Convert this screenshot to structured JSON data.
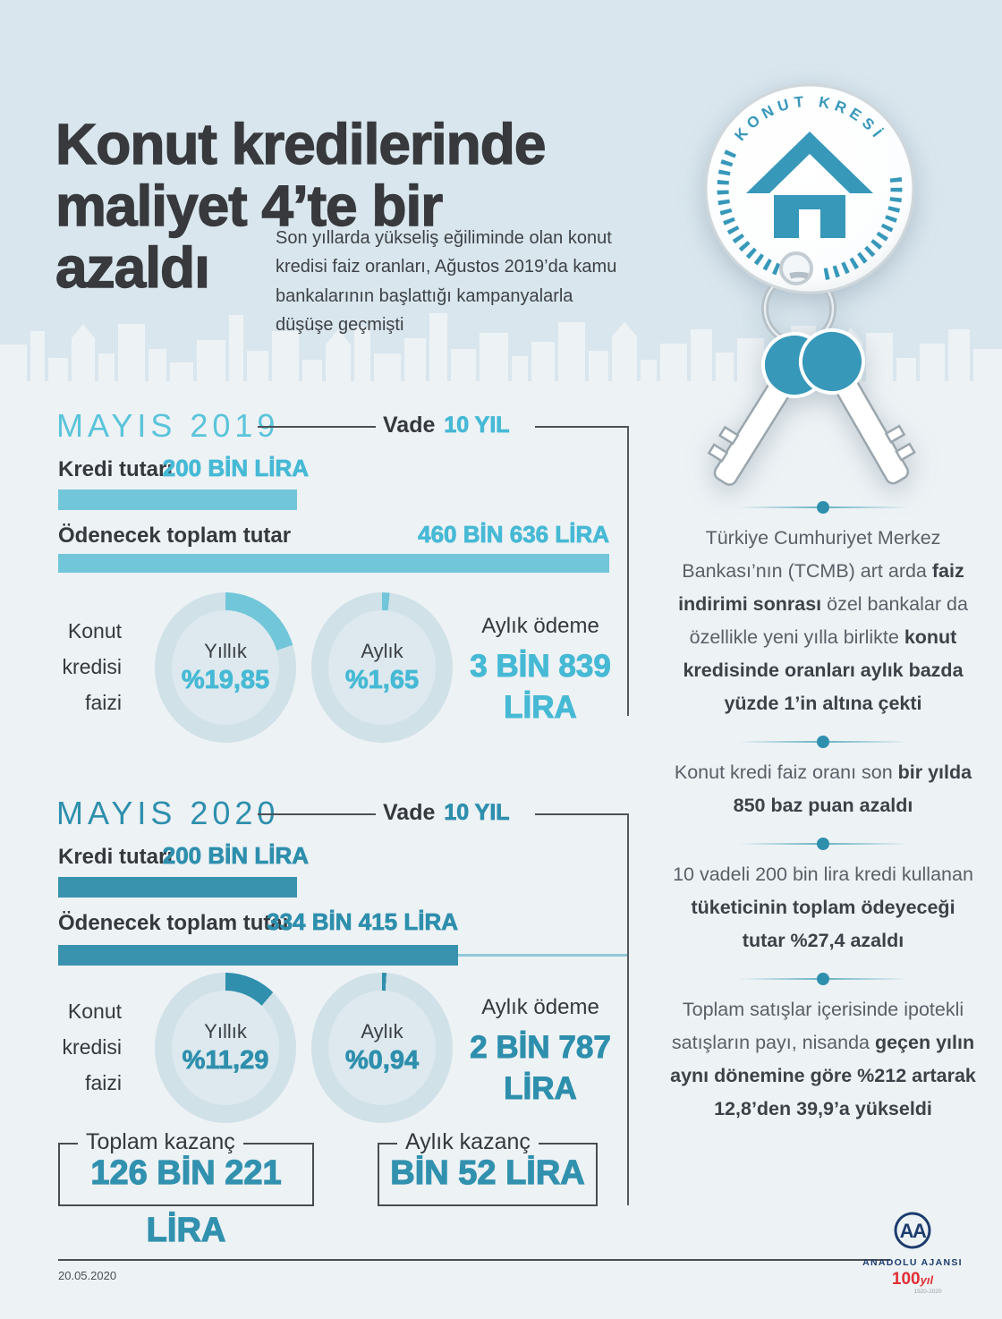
{
  "header": {
    "title_lines": [
      "Konut kredilerinde",
      "maliyet 4’te bir",
      "azaldı"
    ],
    "subtitle": "Son yıllarda yükseliş eğiliminde olan konut kredisi faiz oranları, Ağustos 2019’da kamu bankalarının başlattığı kampanyalarla düşüşe geçmişti",
    "badge": {
      "curved_text": "KONUT KRESİ"
    }
  },
  "may2019": {
    "heading": "MAYIS 2019",
    "vade_label": "Vade",
    "vade_value": "10 YIL",
    "kredi_label": "Kredi tutarı",
    "kredi_value": "200 BİN LİRA",
    "toplam_label": "Ödenecek toplam tutar",
    "toplam_value": "460 BİN 636 LİRA",
    "faiz_label": "Konut kredisi faizi",
    "yillik_label": "Yıllık",
    "yillik_value": "%19,85",
    "aylik_label": "Aylık",
    "aylik_value": "%1,65",
    "odeme_label": "Aylık ödeme",
    "odeme_line1": "3 BİN 839",
    "odeme_line2": "LİRA"
  },
  "may2020": {
    "heading": "MAYIS 2020",
    "vade_label": "Vade",
    "vade_value": "10 YIL",
    "kredi_label": "Kredi tutarı",
    "kredi_value": "200 BİN LİRA",
    "toplam_label": "Ödenecek toplam tutar",
    "toplam_value": "334 BİN 415 LİRA",
    "faiz_label": "Konut kredisi faizi",
    "yillik_label": "Yıllık",
    "yillik_value": "%11,29",
    "aylik_label": "Aylık",
    "aylik_value": "%0,94",
    "odeme_label": "Aylık ödeme",
    "odeme_line1": "2 BİN 787",
    "odeme_line2": "LİRA"
  },
  "kazanc": {
    "toplam_label": "Toplam kazanç",
    "toplam_value": "126 BİN 221 LİRA",
    "aylik_label": "Aylık kazanç",
    "aylik_value": "BİN 52 LİRA"
  },
  "right_column": {
    "paragraphs": [
      {
        "segments": [
          {
            "text": "Türkiye Cumhuriyet Merkez Bankası’nın (TCMB) art arda ",
            "bold": false
          },
          {
            "text": "faiz indirimi sonrası",
            "bold": true
          },
          {
            "text": " özel bankalar da özellikle yeni yılla birlikte ",
            "bold": false
          },
          {
            "text": "konut kredisinde oranları aylık bazda yüzde 1’in altına çekti",
            "bold": true
          }
        ]
      },
      {
        "segments": [
          {
            "text": "Konut kredi faiz oranı son ",
            "bold": false
          },
          {
            "text": "bir yılda 850 baz puan azaldı",
            "bold": true
          }
        ]
      },
      {
        "segments": [
          {
            "text": "10 vadeli 200 bin lira kredi kullanan ",
            "bold": false
          },
          {
            "text": "tüketicinin toplam ödeyeceği tutar %27,4 azaldı",
            "bold": true
          }
        ]
      },
      {
        "segments": [
          {
            "text": "Toplam satışlar içerisinde ipotekli satışların payı, nisanda ",
            "bold": false
          },
          {
            "text": "geçen yılın aynı dönemine göre %212 artarak 12,8’den 39,9’a yükseldi",
            "bold": true
          }
        ]
      }
    ]
  },
  "footer": {
    "date": "20.05.2020",
    "logo_monogram": "AA",
    "agency": "ANADOLU AJANSI",
    "anniversary_number": "100",
    "anniversary_suffix": "yıl",
    "anniversary_years": "1920-2020"
  },
  "colors": {
    "accent_2019": "#46b9d5",
    "accent_2020": "#2e8fad",
    "bar_2019": "#72c6d9",
    "bar_2020": "#3a93ae",
    "header_bg": "#d9e6ee",
    "page_bg": "#edf2f5",
    "dark_text": "#35383c"
  },
  "chart_data": [
    {
      "type": "pie",
      "subtype": "donut",
      "group": "Mayıs 2019 konut kredisi faizi",
      "unit": "%",
      "series": [
        {
          "name": "Yıllık",
          "value": 19.85
        },
        {
          "name": "Aylık",
          "value": 1.65
        }
      ]
    },
    {
      "type": "pie",
      "subtype": "donut",
      "group": "Mayıs 2020 konut kredisi faizi",
      "unit": "%",
      "series": [
        {
          "name": "Yıllık",
          "value": 11.29
        },
        {
          "name": "Aylık",
          "value": 0.94
        }
      ]
    },
    {
      "type": "bar",
      "group": "Mayıs 2019",
      "unit": "lira",
      "vade": "10 yıl",
      "categories": [
        "Kredi tutarı",
        "Ödenecek toplam tutar"
      ],
      "values": [
        200000,
        460636
      ],
      "monthly_payment": 3839
    },
    {
      "type": "bar",
      "group": "Mayıs 2020",
      "unit": "lira",
      "vade": "10 yıl",
      "categories": [
        "Kredi tutarı",
        "Ödenecek toplam tutar"
      ],
      "values": [
        200000,
        334415
      ],
      "monthly_payment": 2787,
      "total_gain": 126221,
      "monthly_gain": 1052
    }
  ]
}
